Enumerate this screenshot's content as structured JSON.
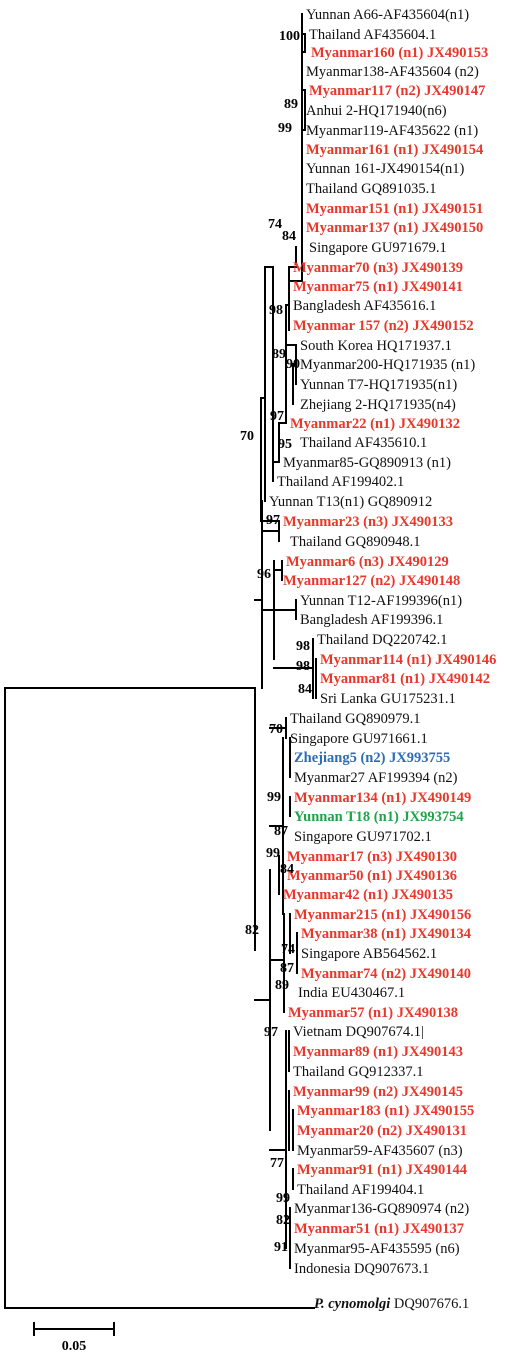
{
  "colors": {
    "new_sequence": "#e8372b",
    "zhejiang_highlight": "#2e6db4",
    "yunnan_highlight": "#22a34a",
    "reference": "#111111"
  },
  "leaves": [
    {
      "text": "Yunnan A66-AF435604(n1)",
      "style": "black"
    },
    {
      "text": "Thailand  AF435604.1",
      "style": "black"
    },
    {
      "text": "Myanmar160 (n1) JX490153",
      "style": "red"
    },
    {
      "text": "Myanmar138-AF435604 (n2)",
      "style": "black"
    },
    {
      "text": "Myanmar117 (n2) JX490147",
      "style": "red"
    },
    {
      "text": "Anhui 2-HQ171940(n6)",
      "style": "black"
    },
    {
      "text": "Myanmar119-AF435622 (n1)",
      "style": "black"
    },
    {
      "text": "Myanmar161 (n1) JX490154",
      "style": "red"
    },
    {
      "text": "Yunnan 161-JX490154(n1)",
      "style": "black"
    },
    {
      "text": "Thailand GQ891035.1",
      "style": "black"
    },
    {
      "text": "Myanmar151 (n1) JX490151",
      "style": "red"
    },
    {
      "text": "Myanmar137 (n1) JX490150",
      "style": "red"
    },
    {
      "text": "Singapore GU971679.1",
      "style": "black"
    },
    {
      "text": "Myanmar70 (n3) JX490139",
      "style": "red"
    },
    {
      "text": "Myanmar75 (n1) JX490141",
      "style": "red"
    },
    {
      "text": "Bangladesh AF435616.1",
      "style": "black"
    },
    {
      "text": "Myanmar 157 (n2) JX490152",
      "style": "red"
    },
    {
      "text": "South Korea HQ171937.1",
      "style": "black"
    },
    {
      "text": "Myanmar200-HQ171935 (n1)",
      "style": "black"
    },
    {
      "text": "Yunnan T7-HQ171935(n1)",
      "style": "black"
    },
    {
      "text": "Zhejiang 2-HQ171935(n4)",
      "style": "black"
    },
    {
      "text": "Myanmar22 (n1) JX490132",
      "style": "red"
    },
    {
      "text": "Thailand AF435610.1",
      "style": "black"
    },
    {
      "text": "Myanmar85-GQ890913 (n1)",
      "style": "black"
    },
    {
      "text": "Thailand AF199402.1",
      "style": "black"
    },
    {
      "text": "Yunnan T13(n1) GQ890912",
      "style": "black"
    },
    {
      "text": "Myanmar23 (n3) JX490133",
      "style": "red"
    },
    {
      "text": "Thailand GQ890948.1",
      "style": "black"
    },
    {
      "text": "Myanmar6 (n3) JX490129",
      "style": "red"
    },
    {
      "text": "Myanmar127 (n2) JX490148",
      "style": "red"
    },
    {
      "text": "Yunnan T12-AF199396(n1)",
      "style": "black"
    },
    {
      "text": "Bangladesh AF199396.1",
      "style": "black"
    },
    {
      "text": "Thailand DQ220742.1",
      "style": "black"
    },
    {
      "text": "Myanmar114 (n1) JX490146",
      "style": "red"
    },
    {
      "text": "Myanmar81 (n1) JX490142",
      "style": "red"
    },
    {
      "text": "Sri Lanka GU175231.1",
      "style": "black"
    },
    {
      "text": "Thailand GQ890979.1",
      "style": "black"
    },
    {
      "text": "Singapore GU971661.1",
      "style": "black"
    },
    {
      "text": "Zhejiang5 (n2) JX993755",
      "style": "blue"
    },
    {
      "text": "Myanmar27 AF199394 (n2)",
      "style": "black"
    },
    {
      "text": "Myanmar134 (n1) JX490149",
      "style": "red"
    },
    {
      "text": "Yunnan T18 (n1) JX993754",
      "style": "green"
    },
    {
      "text": "Singapore GU971702.1",
      "style": "black"
    },
    {
      "text": "Myanmar17 (n3) JX490130",
      "style": "red"
    },
    {
      "text": "Myanmar50 (n1) JX490136",
      "style": "red"
    },
    {
      "text": "Myanmar42 (n1) JX490135",
      "style": "red"
    },
    {
      "text": "Myanmar215 (n1) JX490156",
      "style": "red"
    },
    {
      "text": "Myanmar38 (n1) JX490134",
      "style": "red"
    },
    {
      "text": "Singapore AB564562.1",
      "style": "black"
    },
    {
      "text": "Myanmar74 (n2) JX490140",
      "style": "red"
    },
    {
      "text": "India EU430467.1",
      "style": "black"
    },
    {
      "text": "Myanmar57 (n1) JX490138",
      "style": "red"
    },
    {
      "text": "Vietnam DQ907674.1|",
      "style": "black"
    },
    {
      "text": "Myanmar89 (n1) JX490143",
      "style": "red"
    },
    {
      "text": "Thailand GQ912337.1",
      "style": "black"
    },
    {
      "text": "Myanmar99 (n2) JX490145",
      "style": "red"
    },
    {
      "text": "Myanmar183 (n1) JX490155",
      "style": "red"
    },
    {
      "text": "Myanmar20 (n2) JX490131",
      "style": "red"
    },
    {
      "text": "Myanmar59-AF435607 (n3)",
      "style": "black"
    },
    {
      "text": "Myanmar91 (n1) JX490144",
      "style": "red"
    },
    {
      "text": "Thailand AF199404.1",
      "style": "black"
    },
    {
      "text": "Myanmar136-GQ890974 (n2)",
      "style": "black"
    },
    {
      "text": "Myanmar51 (n1) JX490137",
      "style": "red"
    },
    {
      "text": "Myanmar95-AF435595 (n6)",
      "style": "black"
    },
    {
      "text": "Indonesia DQ907673.1",
      "style": "black"
    }
  ],
  "outgroup": {
    "species": "P. cynomolgi",
    "accession": " DQ907676.1"
  },
  "bootstrap_values": [
    "100",
    "89",
    "99",
    "74",
    "84",
    "98",
    "89",
    "90",
    "97",
    "95",
    "70",
    "97",
    "96",
    "98",
    "98",
    "84",
    "70",
    "99",
    "87",
    "99",
    "84",
    "82",
    "74",
    "87",
    "89",
    "97",
    "77",
    "99",
    "82",
    "91"
  ],
  "scale_bar": {
    "label": "0.05"
  }
}
